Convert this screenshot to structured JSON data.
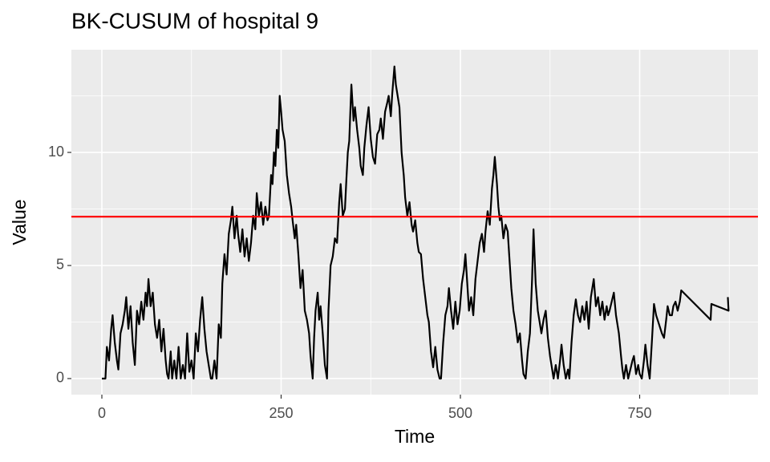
{
  "chart_data": {
    "type": "line",
    "title": "BK-CUSUM of hospital 9",
    "x_label": "Time",
    "y_label": "Value",
    "xlim": [
      -42.5,
      915
    ],
    "ylim": [
      -0.71,
      14.54
    ],
    "xticks": [
      0,
      250,
      500,
      750
    ],
    "yticks": [
      0,
      5,
      10
    ],
    "grid": true,
    "minor_grid": true,
    "color": "#000000",
    "hline": {
      "value": 7.16,
      "color": "#ff0000"
    },
    "x": [
      0,
      5,
      7,
      10,
      13,
      15,
      18,
      21,
      23,
      26,
      29,
      32,
      34,
      37,
      40,
      43,
      46,
      49,
      52,
      55,
      58,
      61,
      63,
      65,
      68,
      71,
      74,
      77,
      80,
      83,
      86,
      89,
      91,
      93,
      96,
      98,
      101,
      104,
      107,
      110,
      113,
      116,
      119,
      122,
      125,
      128,
      131,
      134,
      137,
      140,
      143,
      146,
      149,
      152,
      154,
      157,
      160,
      163,
      166,
      168,
      171,
      174,
      177,
      180,
      182,
      185,
      188,
      190,
      193,
      196,
      199,
      202,
      205,
      208,
      211,
      214,
      216,
      219,
      222,
      225,
      228,
      231,
      233,
      236,
      238,
      240,
      242,
      244,
      246,
      248,
      250,
      252,
      255,
      258,
      261,
      264,
      266,
      269,
      271,
      274,
      277,
      280,
      283,
      286,
      289,
      291,
      294,
      296,
      298,
      301,
      303,
      305,
      308,
      311,
      314,
      316,
      319,
      322,
      325,
      328,
      331,
      333,
      336,
      339,
      341,
      343,
      345,
      347,
      348,
      351,
      353,
      356,
      359,
      361,
      364,
      366,
      369,
      372,
      375,
      378,
      381,
      384,
      387,
      389,
      392,
      395,
      398,
      400,
      403,
      405,
      408,
      410,
      413,
      415,
      418,
      421,
      423,
      426,
      429,
      432,
      434,
      437,
      440,
      442,
      445,
      448,
      451,
      454,
      456,
      459,
      462,
      465,
      468,
      471,
      473,
      476,
      479,
      482,
      484,
      487,
      490,
      493,
      496,
      499,
      502,
      505,
      507,
      510,
      512,
      515,
      518,
      521,
      524,
      527,
      530,
      533,
      535,
      538,
      541,
      544,
      546,
      548,
      551,
      553,
      555,
      557,
      560,
      563,
      566,
      569,
      571,
      574,
      577,
      580,
      583,
      586,
      588,
      591,
      594,
      597,
      600,
      602,
      605,
      608,
      611,
      613,
      616,
      619,
      622,
      625,
      628,
      630,
      633,
      636,
      639,
      641,
      644,
      647,
      650,
      652,
      655,
      658,
      661,
      664,
      667,
      670,
      673,
      676,
      679,
      682,
      684,
      686,
      689,
      692,
      695,
      698,
      701,
      704,
      706,
      708,
      711,
      714,
      717,
      719,
      721,
      724,
      726,
      728,
      731,
      734,
      737,
      740,
      742,
      745,
      748,
      750,
      753,
      756,
      758,
      761,
      764,
      767,
      770,
      773,
      777,
      781,
      784,
      787,
      789,
      792,
      795,
      797,
      800,
      803,
      806,
      808,
      849,
      850,
      874,
      873
    ],
    "values": [
      0,
      0,
      1.4,
      0.8,
      2.2,
      2.8,
      1.6,
      0.8,
      0.4,
      2.0,
      2.4,
      3.0,
      3.6,
      2.2,
      3.2,
      1.6,
      0.6,
      3.0,
      2.4,
      3.4,
      2.6,
      3.8,
      3.2,
      4.4,
      3.2,
      3.8,
      2.4,
      1.8,
      2.6,
      1.2,
      2.2,
      0.8,
      0.2,
      0,
      1.2,
      0,
      0.8,
      0,
      1.4,
      0,
      0.6,
      0,
      2.0,
      0.3,
      0.8,
      0,
      2.0,
      1.2,
      2.6,
      3.6,
      2.2,
      1.2,
      0.6,
      0,
      0,
      0.8,
      0,
      2.4,
      1.8,
      4.2,
      5.5,
      4.6,
      6.4,
      7.0,
      7.6,
      6.2,
      7.2,
      6.4,
      5.6,
      6.6,
      5.4,
      6.2,
      5.2,
      6.0,
      7.2,
      6.6,
      8.2,
      7.2,
      7.8,
      6.8,
      7.6,
      7.0,
      7.2,
      9.0,
      8.6,
      10.0,
      9.4,
      11.0,
      10.2,
      12.5,
      11.8,
      11.0,
      10.5,
      9.0,
      8.2,
      7.6,
      7.0,
      6.2,
      6.8,
      5.5,
      4.0,
      4.8,
      3.0,
      2.6,
      2.0,
      1.0,
      0,
      1.8,
      3.0,
      3.8,
      2.6,
      3.2,
      2.0,
      0.6,
      0,
      3.0,
      5.0,
      5.4,
      6.2,
      6.0,
      7.8,
      8.6,
      7.2,
      7.5,
      8.8,
      10.0,
      10.5,
      12.2,
      13.0,
      11.4,
      12.0,
      11.0,
      10.2,
      9.4,
      9.0,
      10.2,
      11.2,
      12.0,
      10.6,
      9.8,
      9.5,
      10.8,
      11.0,
      11.5,
      10.6,
      11.8,
      12.2,
      12.5,
      11.6,
      12.6,
      13.8,
      13.0,
      12.4,
      12.0,
      10.0,
      9.0,
      8.0,
      7.2,
      7.8,
      6.8,
      6.5,
      7.0,
      6.0,
      5.6,
      5.5,
      4.4,
      3.6,
      2.8,
      2.5,
      1.2,
      0.5,
      1.4,
      0.4,
      0,
      0,
      1.6,
      2.8,
      3.2,
      4.0,
      3.0,
      2.2,
      3.4,
      2.4,
      3.0,
      4.2,
      4.8,
      5.5,
      4.0,
      3.0,
      3.6,
      2.8,
      4.4,
      5.2,
      6.0,
      6.4,
      5.6,
      6.5,
      7.4,
      6.8,
      8.4,
      9.0,
      9.8,
      8.6,
      7.6,
      7.0,
      7.2,
      6.2,
      6.8,
      6.5,
      5.0,
      4.0,
      3.0,
      2.4,
      1.6,
      2.0,
      0.8,
      0.2,
      0,
      1.2,
      2.0,
      4.4,
      6.6,
      4.2,
      3.0,
      2.4,
      2.0,
      2.6,
      3.0,
      1.8,
      1.0,
      0.4,
      0,
      0.6,
      0,
      0.8,
      1.5,
      0.6,
      0,
      0.4,
      0,
      1.6,
      2.8,
      3.5,
      2.8,
      2.5,
      3.2,
      2.6,
      3.4,
      2.2,
      3.6,
      4.0,
      4.4,
      3.2,
      3.6,
      2.8,
      3.4,
      2.6,
      3.2,
      2.8,
      3.0,
      3.4,
      3.8,
      2.8,
      2.4,
      2.0,
      1.0,
      0.4,
      0,
      0.6,
      0,
      0.4,
      0.8,
      1.0,
      0.2,
      0.6,
      0.2,
      0,
      0.8,
      1.5,
      0.6,
      0,
      1.6,
      3.3,
      2.8,
      2.4,
      2.0,
      1.8,
      2.6,
      3.2,
      2.8,
      2.8,
      3.2,
      3.4,
      3.0,
      3.4,
      3.9,
      2.6,
      3.3,
      3.0,
      3.6
    ]
  }
}
